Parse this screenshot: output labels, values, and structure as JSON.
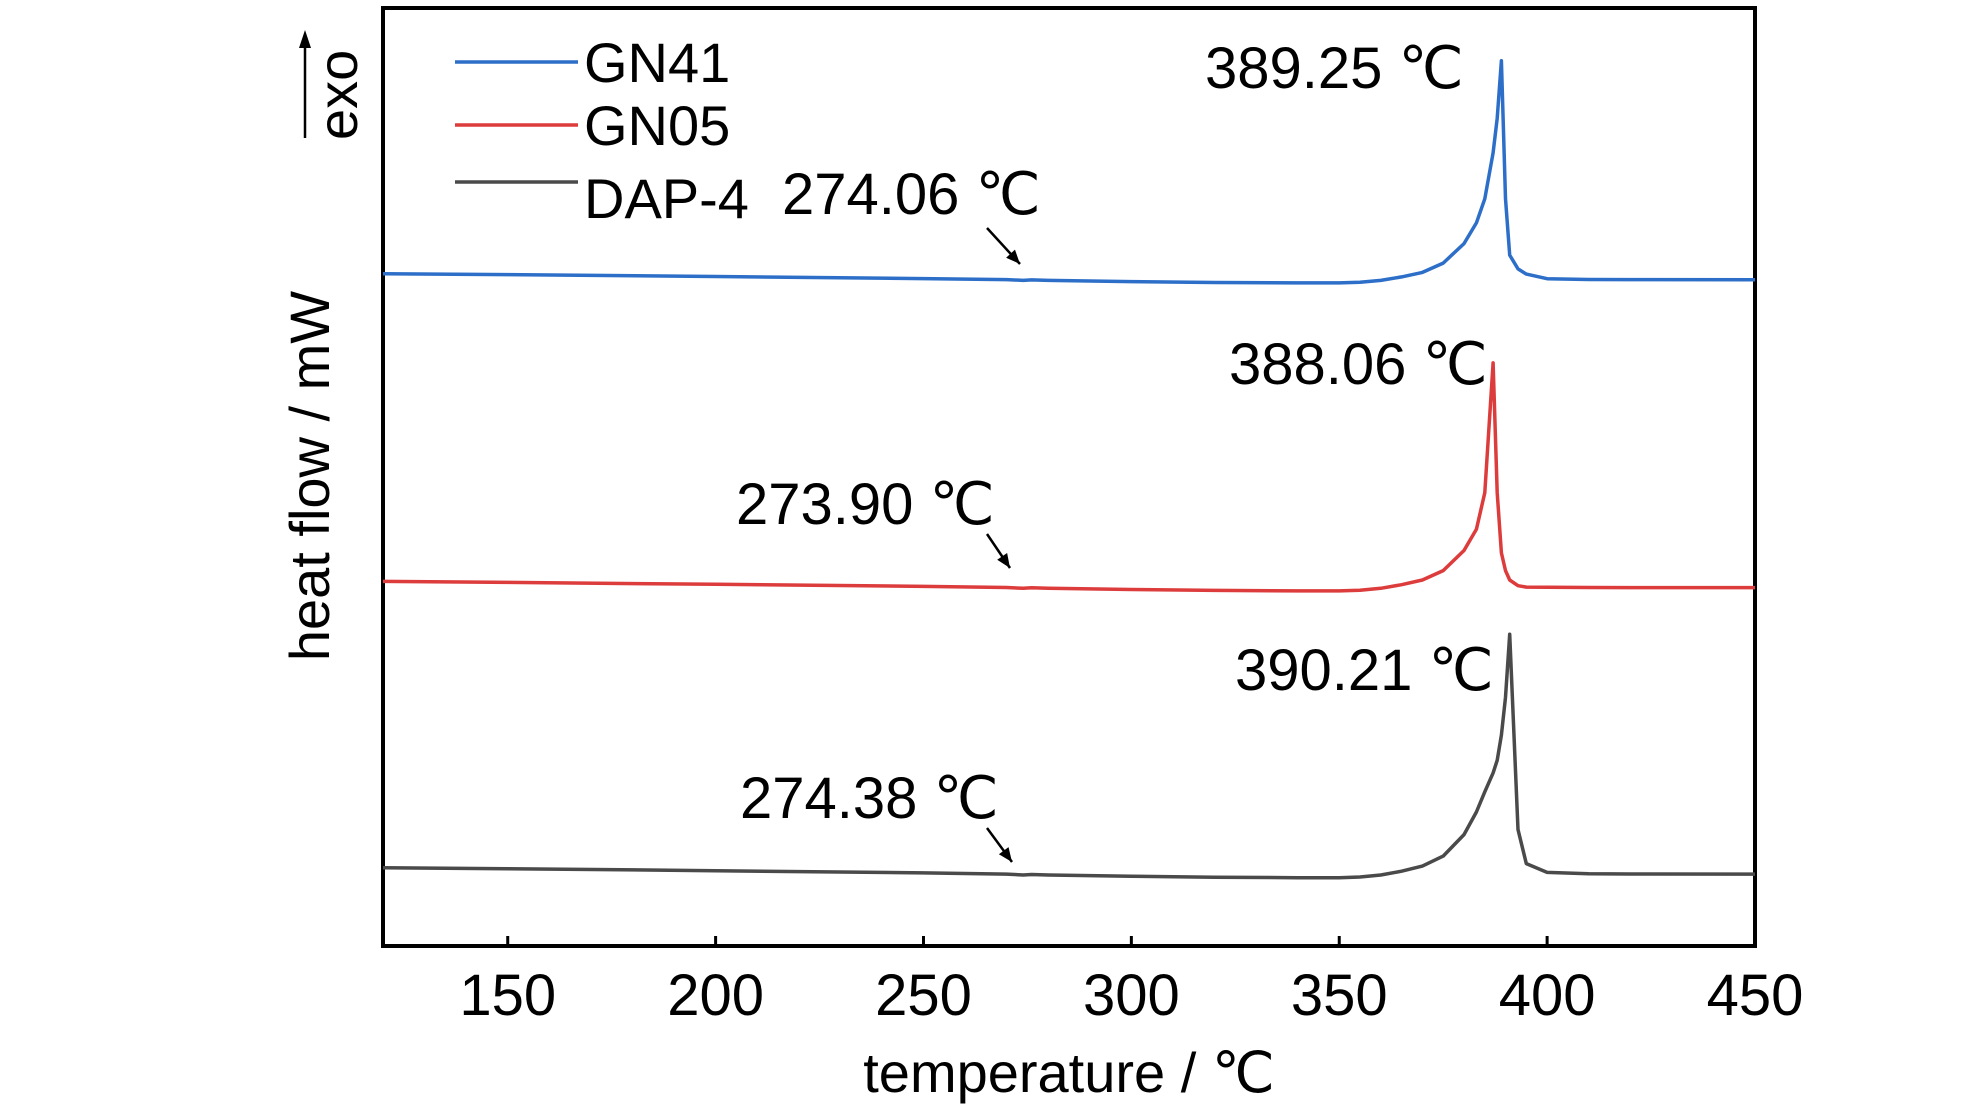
{
  "chart_data": {
    "type": "line",
    "title": "",
    "xlabel": "temperature / ℃",
    "ylabel": "heat flow / mW",
    "ylabel_aux": "exo",
    "xlim": [
      120,
      450
    ],
    "xticks": [
      150,
      200,
      250,
      300,
      350,
      400,
      450
    ],
    "y_ticks_shown": false,
    "grid": false,
    "legend_position": "top-left",
    "x": [
      120,
      150,
      200,
      250,
      270,
      274,
      276,
      280,
      300,
      320,
      340,
      350,
      355,
      360,
      365,
      370,
      375,
      380,
      383,
      385,
      387,
      388,
      389,
      390,
      391,
      393,
      395,
      400,
      410,
      420,
      450
    ],
    "series": [
      {
        "name": "GN41",
        "color": "#2d6fc8",
        "values": [
          0.98,
          0.9,
          0.74,
          0.56,
          0.47,
          0.4,
          0.44,
          0.4,
          0.3,
          0.22,
          0.18,
          0.18,
          0.24,
          0.4,
          0.7,
          1.1,
          1.9,
          3.6,
          5.4,
          7.5,
          11.5,
          14.5,
          19.5,
          7.5,
          2.6,
          1.4,
          0.95,
          0.55,
          0.48,
          0.47,
          0.46
        ],
        "peak_label": "389.25 ℃",
        "transition_label": "274.06 ℃"
      },
      {
        "name": "GN05",
        "color": "#dd3c3c",
        "values": [
          0.98,
          0.9,
          0.74,
          0.56,
          0.47,
          0.4,
          0.44,
          0.4,
          0.3,
          0.22,
          0.18,
          0.18,
          0.24,
          0.4,
          0.7,
          1.1,
          1.9,
          3.6,
          5.4,
          8.5,
          19.5,
          8.5,
          3.4,
          1.9,
          1.1,
          0.62,
          0.5,
          0.48,
          0.47,
          0.46,
          0.46
        ],
        "peak_label": "388.06 ℃",
        "transition_label": "273.90 ℃"
      },
      {
        "name": "DAP-4",
        "color": "#4a4a4a",
        "values": [
          0.98,
          0.9,
          0.74,
          0.56,
          0.47,
          0.4,
          0.44,
          0.4,
          0.3,
          0.22,
          0.18,
          0.18,
          0.24,
          0.4,
          0.7,
          1.1,
          1.9,
          3.6,
          5.4,
          7.0,
          8.5,
          9.5,
          11.5,
          14.5,
          19.5,
          4.0,
          1.3,
          0.6,
          0.5,
          0.48,
          0.47
        ],
        "peak_label": "390.21 ℃",
        "transition_label": "274.38 ℃"
      }
    ]
  }
}
